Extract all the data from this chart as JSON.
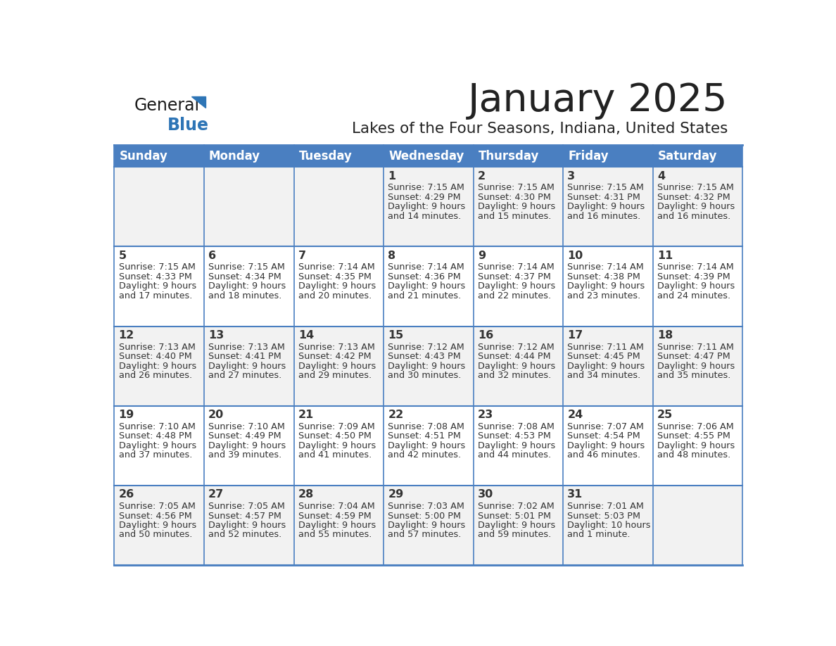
{
  "title": "January 2025",
  "subtitle": "Lakes of the Four Seasons, Indiana, United States",
  "days_of_week": [
    "Sunday",
    "Monday",
    "Tuesday",
    "Wednesday",
    "Thursday",
    "Friday",
    "Saturday"
  ],
  "header_bg": "#4A7FC1",
  "header_text": "#FFFFFF",
  "cell_bg_odd": "#F2F2F2",
  "cell_bg_even": "#FFFFFF",
  "cell_text": "#333333",
  "border_color": "#4A7FC1",
  "title_color": "#222222",
  "subtitle_color": "#222222",
  "logo_general_color": "#1a1a1a",
  "logo_blue_color": "#2E75B6",
  "calendar_data": [
    [
      null,
      null,
      null,
      {
        "day": 1,
        "sunrise": "7:15 AM",
        "sunset": "4:29 PM",
        "daylight_l1": "Daylight: 9 hours",
        "daylight_l2": "and 14 minutes."
      },
      {
        "day": 2,
        "sunrise": "7:15 AM",
        "sunset": "4:30 PM",
        "daylight_l1": "Daylight: 9 hours",
        "daylight_l2": "and 15 minutes."
      },
      {
        "day": 3,
        "sunrise": "7:15 AM",
        "sunset": "4:31 PM",
        "daylight_l1": "Daylight: 9 hours",
        "daylight_l2": "and 16 minutes."
      },
      {
        "day": 4,
        "sunrise": "7:15 AM",
        "sunset": "4:32 PM",
        "daylight_l1": "Daylight: 9 hours",
        "daylight_l2": "and 16 minutes."
      }
    ],
    [
      {
        "day": 5,
        "sunrise": "7:15 AM",
        "sunset": "4:33 PM",
        "daylight_l1": "Daylight: 9 hours",
        "daylight_l2": "and 17 minutes."
      },
      {
        "day": 6,
        "sunrise": "7:15 AM",
        "sunset": "4:34 PM",
        "daylight_l1": "Daylight: 9 hours",
        "daylight_l2": "and 18 minutes."
      },
      {
        "day": 7,
        "sunrise": "7:14 AM",
        "sunset": "4:35 PM",
        "daylight_l1": "Daylight: 9 hours",
        "daylight_l2": "and 20 minutes."
      },
      {
        "day": 8,
        "sunrise": "7:14 AM",
        "sunset": "4:36 PM",
        "daylight_l1": "Daylight: 9 hours",
        "daylight_l2": "and 21 minutes."
      },
      {
        "day": 9,
        "sunrise": "7:14 AM",
        "sunset": "4:37 PM",
        "daylight_l1": "Daylight: 9 hours",
        "daylight_l2": "and 22 minutes."
      },
      {
        "day": 10,
        "sunrise": "7:14 AM",
        "sunset": "4:38 PM",
        "daylight_l1": "Daylight: 9 hours",
        "daylight_l2": "and 23 minutes."
      },
      {
        "day": 11,
        "sunrise": "7:14 AM",
        "sunset": "4:39 PM",
        "daylight_l1": "Daylight: 9 hours",
        "daylight_l2": "and 24 minutes."
      }
    ],
    [
      {
        "day": 12,
        "sunrise": "7:13 AM",
        "sunset": "4:40 PM",
        "daylight_l1": "Daylight: 9 hours",
        "daylight_l2": "and 26 minutes."
      },
      {
        "day": 13,
        "sunrise": "7:13 AM",
        "sunset": "4:41 PM",
        "daylight_l1": "Daylight: 9 hours",
        "daylight_l2": "and 27 minutes."
      },
      {
        "day": 14,
        "sunrise": "7:13 AM",
        "sunset": "4:42 PM",
        "daylight_l1": "Daylight: 9 hours",
        "daylight_l2": "and 29 minutes."
      },
      {
        "day": 15,
        "sunrise": "7:12 AM",
        "sunset": "4:43 PM",
        "daylight_l1": "Daylight: 9 hours",
        "daylight_l2": "and 30 minutes."
      },
      {
        "day": 16,
        "sunrise": "7:12 AM",
        "sunset": "4:44 PM",
        "daylight_l1": "Daylight: 9 hours",
        "daylight_l2": "and 32 minutes."
      },
      {
        "day": 17,
        "sunrise": "7:11 AM",
        "sunset": "4:45 PM",
        "daylight_l1": "Daylight: 9 hours",
        "daylight_l2": "and 34 minutes."
      },
      {
        "day": 18,
        "sunrise": "7:11 AM",
        "sunset": "4:47 PM",
        "daylight_l1": "Daylight: 9 hours",
        "daylight_l2": "and 35 minutes."
      }
    ],
    [
      {
        "day": 19,
        "sunrise": "7:10 AM",
        "sunset": "4:48 PM",
        "daylight_l1": "Daylight: 9 hours",
        "daylight_l2": "and 37 minutes."
      },
      {
        "day": 20,
        "sunrise": "7:10 AM",
        "sunset": "4:49 PM",
        "daylight_l1": "Daylight: 9 hours",
        "daylight_l2": "and 39 minutes."
      },
      {
        "day": 21,
        "sunrise": "7:09 AM",
        "sunset": "4:50 PM",
        "daylight_l1": "Daylight: 9 hours",
        "daylight_l2": "and 41 minutes."
      },
      {
        "day": 22,
        "sunrise": "7:08 AM",
        "sunset": "4:51 PM",
        "daylight_l1": "Daylight: 9 hours",
        "daylight_l2": "and 42 minutes."
      },
      {
        "day": 23,
        "sunrise": "7:08 AM",
        "sunset": "4:53 PM",
        "daylight_l1": "Daylight: 9 hours",
        "daylight_l2": "and 44 minutes."
      },
      {
        "day": 24,
        "sunrise": "7:07 AM",
        "sunset": "4:54 PM",
        "daylight_l1": "Daylight: 9 hours",
        "daylight_l2": "and 46 minutes."
      },
      {
        "day": 25,
        "sunrise": "7:06 AM",
        "sunset": "4:55 PM",
        "daylight_l1": "Daylight: 9 hours",
        "daylight_l2": "and 48 minutes."
      }
    ],
    [
      {
        "day": 26,
        "sunrise": "7:05 AM",
        "sunset": "4:56 PM",
        "daylight_l1": "Daylight: 9 hours",
        "daylight_l2": "and 50 minutes."
      },
      {
        "day": 27,
        "sunrise": "7:05 AM",
        "sunset": "4:57 PM",
        "daylight_l1": "Daylight: 9 hours",
        "daylight_l2": "and 52 minutes."
      },
      {
        "day": 28,
        "sunrise": "7:04 AM",
        "sunset": "4:59 PM",
        "daylight_l1": "Daylight: 9 hours",
        "daylight_l2": "and 55 minutes."
      },
      {
        "day": 29,
        "sunrise": "7:03 AM",
        "sunset": "5:00 PM",
        "daylight_l1": "Daylight: 9 hours",
        "daylight_l2": "and 57 minutes."
      },
      {
        "day": 30,
        "sunrise": "7:02 AM",
        "sunset": "5:01 PM",
        "daylight_l1": "Daylight: 9 hours",
        "daylight_l2": "and 59 minutes."
      },
      {
        "day": 31,
        "sunrise": "7:01 AM",
        "sunset": "5:03 PM",
        "daylight_l1": "Daylight: 10 hours",
        "daylight_l2": "and 1 minute."
      },
      null
    ]
  ]
}
